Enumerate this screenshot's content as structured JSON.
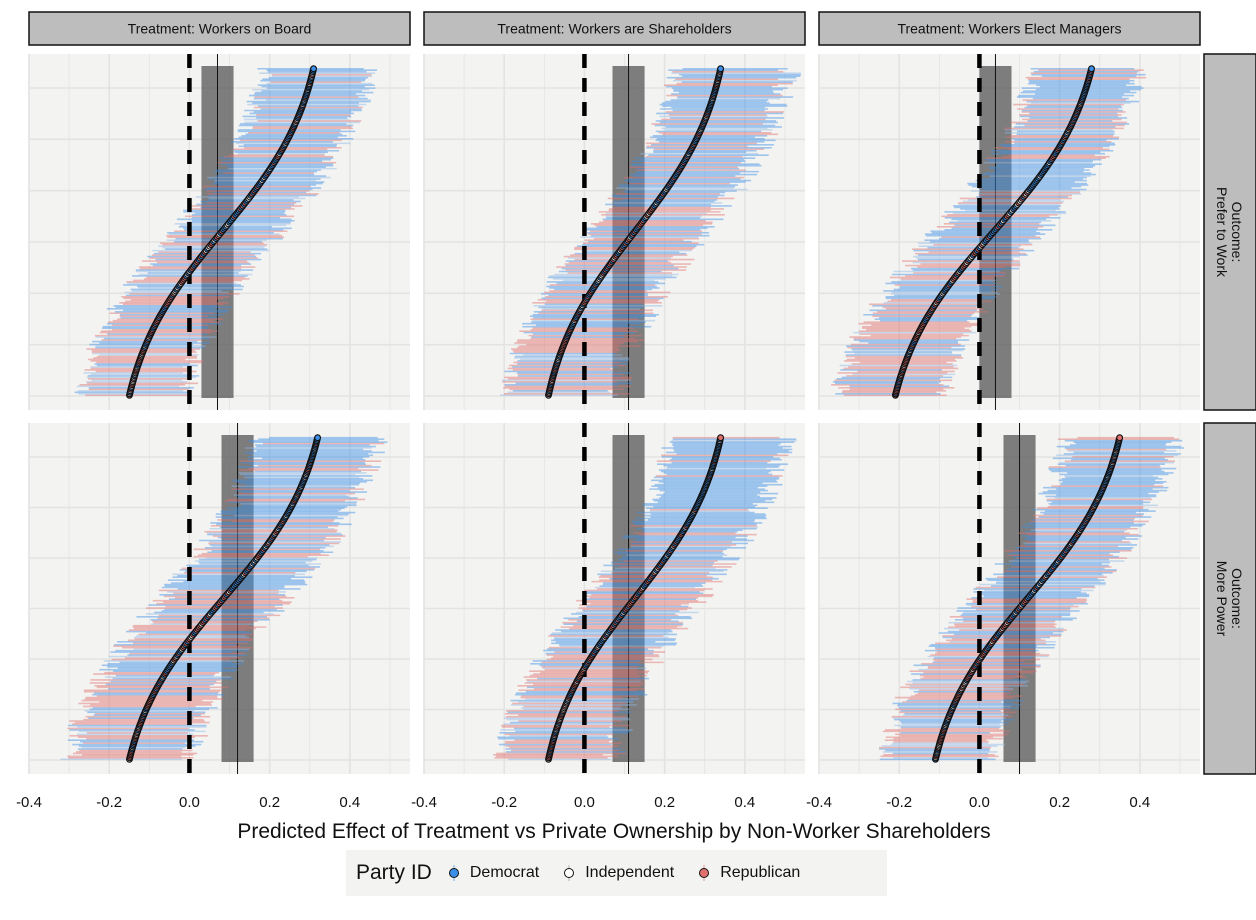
{
  "chart_data": {
    "type": "scatter",
    "description_x_axis": "",
    "xlabel": "Predicted Effect of Treatment vs Private Ownership by Non-Worker Shareholders",
    "xlim": [
      -0.4,
      0.55
    ],
    "x_ticks": [
      -0.4,
      -0.2,
      0.0,
      0.2,
      0.4
    ],
    "x_tick_labels": [
      "-0.4",
      "-0.2",
      "0.0",
      "0.2",
      "0.4"
    ],
    "reference_line_x": 0.0,
    "grid": true,
    "legend_position": "bottom",
    "legend": {
      "title": "Party ID",
      "entries": [
        {
          "name": "Democrat",
          "color": "#3b8fe8"
        },
        {
          "name": "Independent",
          "color": "#ffffff"
        },
        {
          "name": "Republican",
          "color": "#e0706e"
        }
      ]
    },
    "columns": [
      "Treatment: Workers on Board",
      "Treatment: Workers are Shareholders",
      "Treatment: Workers Elect Managers"
    ],
    "rows": [
      {
        "line1": "Outcome:",
        "line2": "Prefer to Work"
      },
      {
        "line1": "Outcome:",
        "line2": "More Power"
      }
    ],
    "panels": [
      {
        "row": 0,
        "col": 0,
        "min": -0.15,
        "max": 0.31,
        "ate": 0.07,
        "ate_lo": 0.03,
        "ate_hi": 0.11,
        "ci_lo_width": 0.12,
        "ci_hi_width": 0.14
      },
      {
        "row": 0,
        "col": 1,
        "min": -0.09,
        "max": 0.34,
        "ate": 0.11,
        "ate_lo": 0.07,
        "ate_hi": 0.15,
        "ci_lo_width": 0.11,
        "ci_hi_width": 0.17
      },
      {
        "row": 0,
        "col": 2,
        "min": -0.21,
        "max": 0.28,
        "ate": 0.04,
        "ate_lo": 0.0,
        "ate_hi": 0.08,
        "ci_lo_width": 0.14,
        "ci_hi_width": 0.12
      },
      {
        "row": 1,
        "col": 0,
        "min": -0.15,
        "max": 0.32,
        "ate": 0.12,
        "ate_lo": 0.08,
        "ate_hi": 0.16,
        "ci_lo_width": 0.15,
        "ci_hi_width": 0.15
      },
      {
        "row": 1,
        "col": 1,
        "min": -0.09,
        "max": 0.34,
        "ate": 0.11,
        "ate_lo": 0.07,
        "ate_hi": 0.15,
        "ci_lo_width": 0.12,
        "ci_hi_width": 0.16
      },
      {
        "row": 1,
        "col": 2,
        "min": -0.11,
        "max": 0.35,
        "ate": 0.1,
        "ate_lo": 0.06,
        "ate_hi": 0.14,
        "ci_lo_width": 0.13,
        "ci_hi_width": 0.14
      }
    ],
    "points_per_panel": 220
  },
  "colors": {
    "panel_bg": "#f3f3f1",
    "grid": "#e3e3e3",
    "strip_bg": "#bdbdbd",
    "democrat": "#3b8fe8",
    "independent": "#ffffff",
    "republican": "#e0706e",
    "ate_band": "#555555"
  }
}
